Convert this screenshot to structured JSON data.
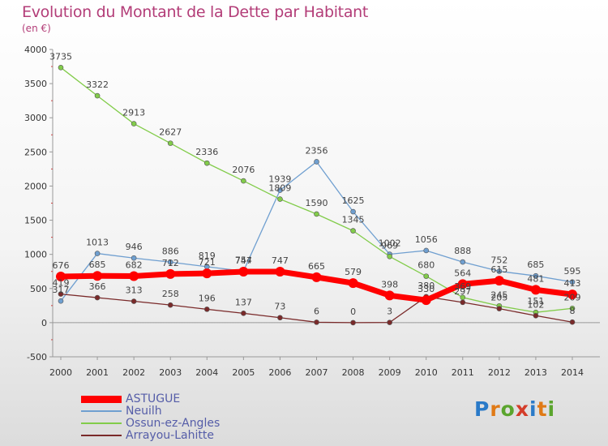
{
  "title": "Evolution du Montant de la Dette par Habitant",
  "subtitle": "(en €)",
  "logo": {
    "text": "Proxiti",
    "colors": [
      "#2a7ac8",
      "#e07a16",
      "#5ba52e",
      "#d43d2a",
      "#2a7ac8",
      "#e07a16",
      "#5ba52e"
    ]
  },
  "chart_data": {
    "type": "line",
    "x": [
      "2000",
      "2001",
      "2002",
      "2003",
      "2004",
      "2005",
      "2006",
      "2007",
      "2008",
      "2009",
      "2010",
      "2011",
      "2012",
      "2013",
      "2014"
    ],
    "ylim": [
      -500,
      4000
    ],
    "yticks": [
      -500,
      0,
      500,
      1000,
      1500,
      2000,
      2500,
      3000,
      3500,
      4000
    ],
    "grid": false,
    "legend_position": "bottom-left",
    "series": [
      {
        "name": "ASTUGUE",
        "color": "#ff0000",
        "values": [
          676,
          685,
          682,
          712,
          721,
          747,
          747,
          665,
          579,
          398,
          330,
          564,
          615,
          481,
          413
        ]
      },
      {
        "name": "Neuilh",
        "color": "#6f9fd0",
        "values": [
          317,
          1013,
          946,
          886,
          819,
          754,
          1939,
          2356,
          1625,
          1002,
          1056,
          888,
          752,
          685,
          595
        ]
      },
      {
        "name": "Ossun-ez-Angles",
        "color": "#82cc4a",
        "values": [
          3735,
          3322,
          2913,
          2627,
          2336,
          2076,
          1809,
          1590,
          1345,
          969,
          680,
          369,
          245,
          151,
          209
        ]
      },
      {
        "name": "Arrayou-Lahitte",
        "color": "#7a2a2a",
        "values": [
          419,
          366,
          313,
          258,
          196,
          137,
          73,
          6,
          0,
          3,
          380,
          297,
          205,
          102,
          8
        ]
      }
    ]
  }
}
